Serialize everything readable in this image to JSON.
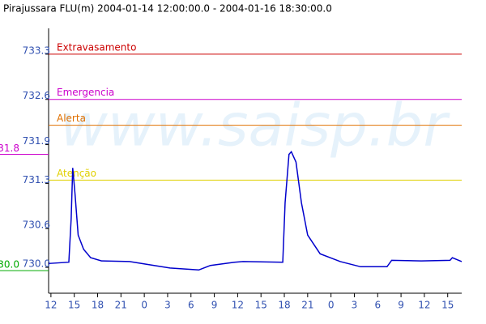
{
  "chart_data": {
    "type": "line",
    "title": "Pirajussara FLU(m) 2004-01-14 12:00:00.0 - 2004-01-16 18:30:00.0",
    "watermark": "www.saisp.br",
    "x": [
      -0.3,
      2.3,
      2.6,
      2.8,
      3.1,
      3.5,
      4.2,
      5.1,
      6.5,
      10.1,
      12.2,
      15.3,
      19.0,
      20.5,
      23.6,
      24.7,
      29.8,
      30.1,
      30.6,
      30.9,
      31.5,
      32.2,
      33.0,
      34.6,
      37.2,
      39.8,
      43.2,
      43.8,
      47.6,
      51.3,
      51.6,
      52.8
    ],
    "series": [
      {
        "name": "Pirajussara FLU(m)",
        "color": "#0000cc",
        "values": [
          730.06,
          730.08,
          730.75,
          731.54,
          731.13,
          730.5,
          730.28,
          730.15,
          730.1,
          730.09,
          730.05,
          729.99,
          729.96,
          730.03,
          730.08,
          730.09,
          730.08,
          731.0,
          731.75,
          731.79,
          731.63,
          731.0,
          730.5,
          730.21,
          730.09,
          730.01,
          730.01,
          730.11,
          730.1,
          730.11,
          730.15,
          730.09
        ]
      }
    ],
    "thresholds": [
      {
        "name": "Extravasamento",
        "value": 733.3,
        "color": "#cc0000"
      },
      {
        "name": "Emergencia",
        "value": 732.6,
        "color": "#cc00cc"
      },
      {
        "name": "Alerta",
        "value": 732.2,
        "color": "#e07000"
      },
      {
        "name": "Atenção",
        "value": 731.35,
        "color": "#e0d000"
      }
    ],
    "side_markers": [
      {
        "label": "31.8",
        "value": 731.8,
        "color": "#cc00cc"
      },
      {
        "label": "30.0",
        "value": 730.0,
        "color": "#00aa00"
      }
    ],
    "xlim": [
      -0.3,
      52.8
    ],
    "ylim": [
      729.6,
      733.7
    ],
    "xticks": [
      {
        "value": 0,
        "label": "12"
      },
      {
        "value": 3,
        "label": "15"
      },
      {
        "value": 6,
        "label": "18"
      },
      {
        "value": 9,
        "label": "21"
      },
      {
        "value": 12,
        "label": "0"
      },
      {
        "value": 15,
        "label": "3"
      },
      {
        "value": 18,
        "label": "6"
      },
      {
        "value": 21,
        "label": "9"
      },
      {
        "value": 24,
        "label": "12"
      },
      {
        "value": 27,
        "label": "15"
      },
      {
        "value": 30,
        "label": "18"
      },
      {
        "value": 33,
        "label": "21"
      },
      {
        "value": 36,
        "label": "0"
      },
      {
        "value": 39,
        "label": "3"
      },
      {
        "value": 42,
        "label": "6"
      },
      {
        "value": 45,
        "label": "9"
      },
      {
        "value": 48,
        "label": "12"
      },
      {
        "value": 51,
        "label": "15"
      }
    ],
    "yticks": [
      {
        "value": 733.3,
        "label": "733.3"
      },
      {
        "value": 732.6,
        "label": "732.6"
      },
      {
        "value": 731.9,
        "label": "731.9"
      },
      {
        "value": 731.3,
        "label": "731.3"
      },
      {
        "value": 730.6,
        "label": "730.6"
      },
      {
        "value": 730.0,
        "label": "730.0"
      }
    ]
  }
}
